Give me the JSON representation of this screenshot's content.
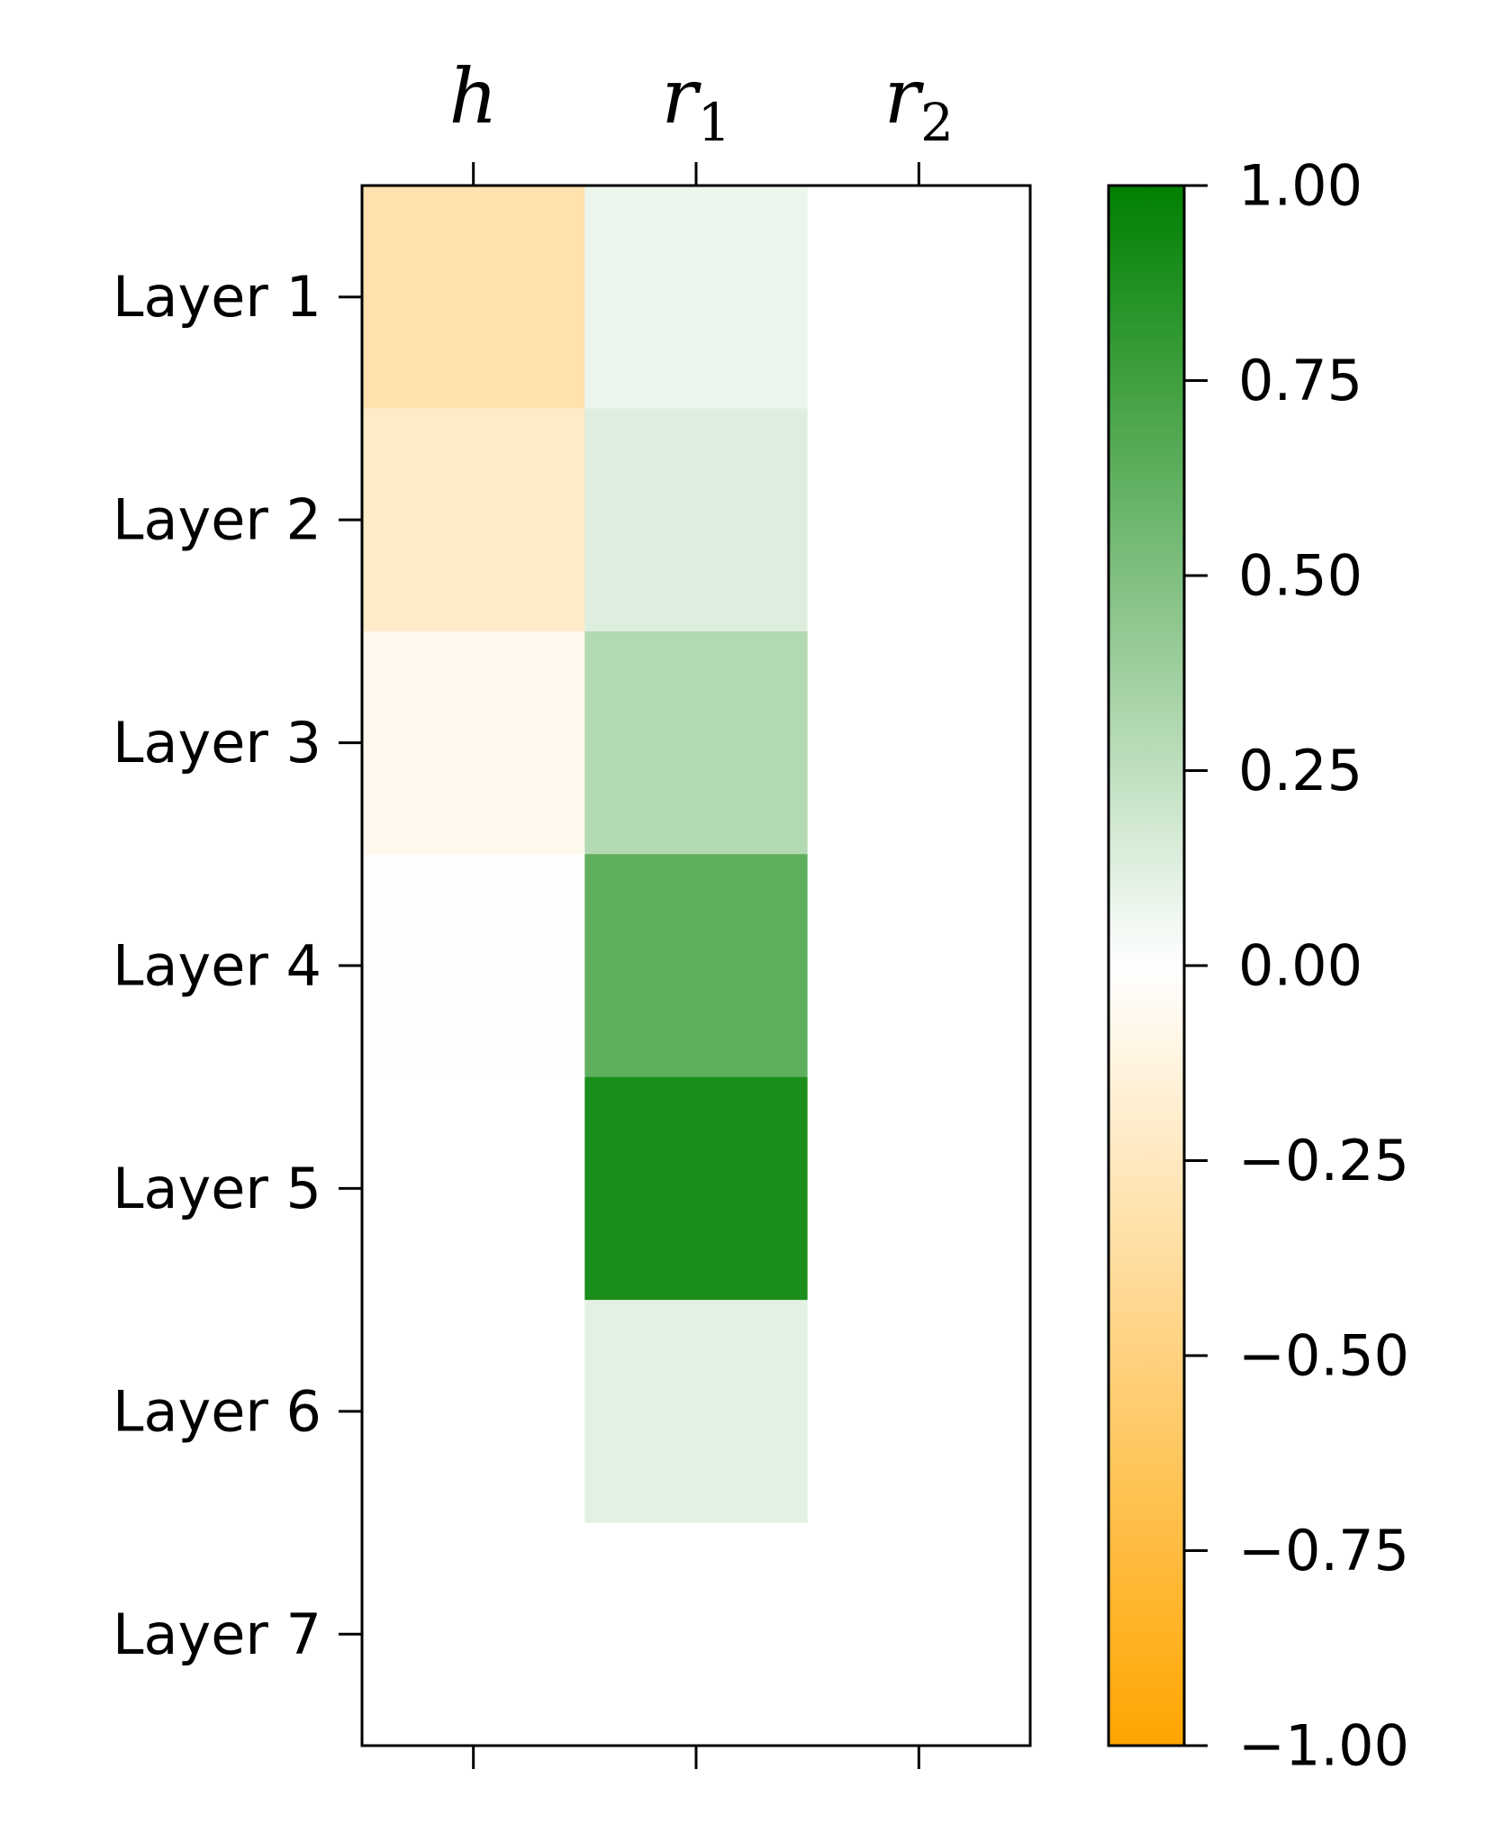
{
  "chart_data": {
    "type": "heatmap",
    "title": "",
    "columns": [
      {
        "main": "h",
        "sub": ""
      },
      {
        "main": "r",
        "sub": "1"
      },
      {
        "main": "r",
        "sub": "2"
      }
    ],
    "rows": [
      "Layer 1",
      "Layer 2",
      "Layer 3",
      "Layer 4",
      "Layer 5",
      "Layer 6",
      "Layer 7"
    ],
    "values": [
      [
        -0.32,
        0.07,
        0.0
      ],
      [
        -0.22,
        0.13,
        0.0
      ],
      [
        -0.07,
        0.3,
        0.0
      ],
      [
        -0.01,
        0.63,
        0.0
      ],
      [
        0.0,
        0.9,
        0.0
      ],
      [
        0.0,
        0.11,
        0.0
      ],
      [
        0.0,
        0.0,
        0.0
      ]
    ],
    "colorbar": {
      "range": [
        -1.0,
        1.0
      ],
      "ticks": [
        1.0,
        0.75,
        0.5,
        0.25,
        0.0,
        -0.25,
        -0.5,
        -0.75,
        -1.0
      ],
      "tick_labels": [
        "1.00",
        "0.75",
        "0.50",
        "0.25",
        "0.00",
        "−0.25",
        "−0.50",
        "−0.75",
        "−1.00"
      ],
      "colors": {
        "min": "#ffa500",
        "mid": "#ffffff",
        "max": "#008000"
      }
    },
    "x_ticks_position": "top",
    "grid": false
  }
}
